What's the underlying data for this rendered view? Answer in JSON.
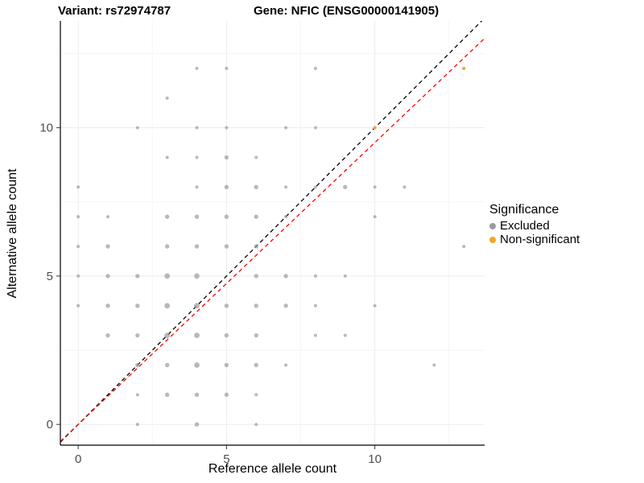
{
  "header": {
    "title_left": "Variant: rs72974787",
    "title_right": "Gene: NFIC (ENSG00000141905)"
  },
  "axes": {
    "xlabel": "Reference allele count",
    "ylabel": "Alternative allele count"
  },
  "legend": {
    "title": "Significance",
    "items": [
      {
        "label": "Excluded",
        "color": "#9B9B9B"
      },
      {
        "label": "Non-significant",
        "color": "#F5A623"
      }
    ]
  },
  "chart_data": {
    "type": "scatter",
    "title": "Variant: rs72974787 — Gene: NFIC (ENSG00000141905)",
    "xlabel": "Reference allele count",
    "ylabel": "Alternative allele count",
    "xlim": [
      -0.6,
      13.7
    ],
    "ylim": [
      -0.7,
      13.6
    ],
    "x_ticks": [
      0,
      5,
      10
    ],
    "y_ticks": [
      0,
      5,
      10
    ],
    "minor_x_ticks": [
      2.5,
      7.5,
      12.5
    ],
    "minor_y_ticks": [
      2.5,
      7.5,
      12.5
    ],
    "grid": true,
    "legend_position": "right",
    "series": [
      {
        "name": "Excluded",
        "color": "#9B9B9B",
        "opacity": 0.7,
        "points": [
          [
            2,
            0,
            1
          ],
          [
            4,
            0,
            2
          ],
          [
            6,
            0,
            1
          ],
          [
            2,
            1,
            1
          ],
          [
            3,
            1,
            2
          ],
          [
            4,
            1,
            2
          ],
          [
            5,
            1,
            2
          ],
          [
            6,
            1,
            1
          ],
          [
            2,
            2,
            2
          ],
          [
            3,
            2,
            2
          ],
          [
            4,
            2,
            3
          ],
          [
            5,
            2,
            2
          ],
          [
            6,
            2,
            2
          ],
          [
            7,
            2,
            1
          ],
          [
            12,
            2,
            1
          ],
          [
            1,
            3,
            2
          ],
          [
            2,
            3,
            2
          ],
          [
            3,
            3,
            3
          ],
          [
            4,
            3,
            3
          ],
          [
            5,
            3,
            2
          ],
          [
            6,
            3,
            2
          ],
          [
            8,
            3,
            1
          ],
          [
            9,
            3,
            1
          ],
          [
            0,
            4,
            1
          ],
          [
            1,
            4,
            2
          ],
          [
            2,
            4,
            2
          ],
          [
            3,
            4,
            3
          ],
          [
            4,
            4,
            3
          ],
          [
            5,
            4,
            2
          ],
          [
            6,
            4,
            2
          ],
          [
            7,
            4,
            2
          ],
          [
            8,
            4,
            1
          ],
          [
            10,
            4,
            1
          ],
          [
            0,
            5,
            1
          ],
          [
            1,
            5,
            2
          ],
          [
            2,
            5,
            2
          ],
          [
            3,
            5,
            3
          ],
          [
            4,
            5,
            3
          ],
          [
            6,
            5,
            2
          ],
          [
            7,
            5,
            2
          ],
          [
            8,
            5,
            1
          ],
          [
            9,
            5,
            1
          ],
          [
            0,
            6,
            1
          ],
          [
            1,
            6,
            2
          ],
          [
            3,
            6,
            2
          ],
          [
            4,
            6,
            2
          ],
          [
            5,
            6,
            2
          ],
          [
            6,
            6,
            2
          ],
          [
            13,
            6,
            1
          ],
          [
            0,
            7,
            1
          ],
          [
            1,
            7,
            1
          ],
          [
            3,
            7,
            2
          ],
          [
            4,
            7,
            2
          ],
          [
            5,
            7,
            2
          ],
          [
            6,
            7,
            2
          ],
          [
            7,
            7,
            1
          ],
          [
            10,
            7,
            1
          ],
          [
            0,
            8,
            1
          ],
          [
            4,
            8,
            1
          ],
          [
            5,
            8,
            2
          ],
          [
            6,
            8,
            2
          ],
          [
            7,
            8,
            1
          ],
          [
            8,
            8,
            1
          ],
          [
            9,
            8,
            2
          ],
          [
            10,
            8,
            1
          ],
          [
            11,
            8,
            1
          ],
          [
            3,
            9,
            1
          ],
          [
            4,
            9,
            1
          ],
          [
            5,
            9,
            2
          ],
          [
            6,
            9,
            1
          ],
          [
            2,
            10,
            1
          ],
          [
            4,
            10,
            1
          ],
          [
            5,
            10,
            1
          ],
          [
            7,
            10,
            1
          ],
          [
            8,
            10,
            1
          ],
          [
            3,
            11,
            1
          ],
          [
            4,
            12,
            1
          ],
          [
            5,
            12,
            1
          ],
          [
            8,
            12,
            1
          ]
        ]
      },
      {
        "name": "Non-significant",
        "color": "#F5A623",
        "opacity": 1,
        "points": [
          [
            10,
            10,
            1
          ],
          [
            13,
            12,
            1
          ]
        ]
      }
    ],
    "lines": [
      {
        "name": "identity-line",
        "color": "#000000",
        "slope": 1,
        "intercept": 0,
        "dash": "5 4"
      },
      {
        "name": "fit-line",
        "color": "#FF0000",
        "slope": 0.95,
        "intercept": 0,
        "dash": "5 4"
      }
    ]
  }
}
